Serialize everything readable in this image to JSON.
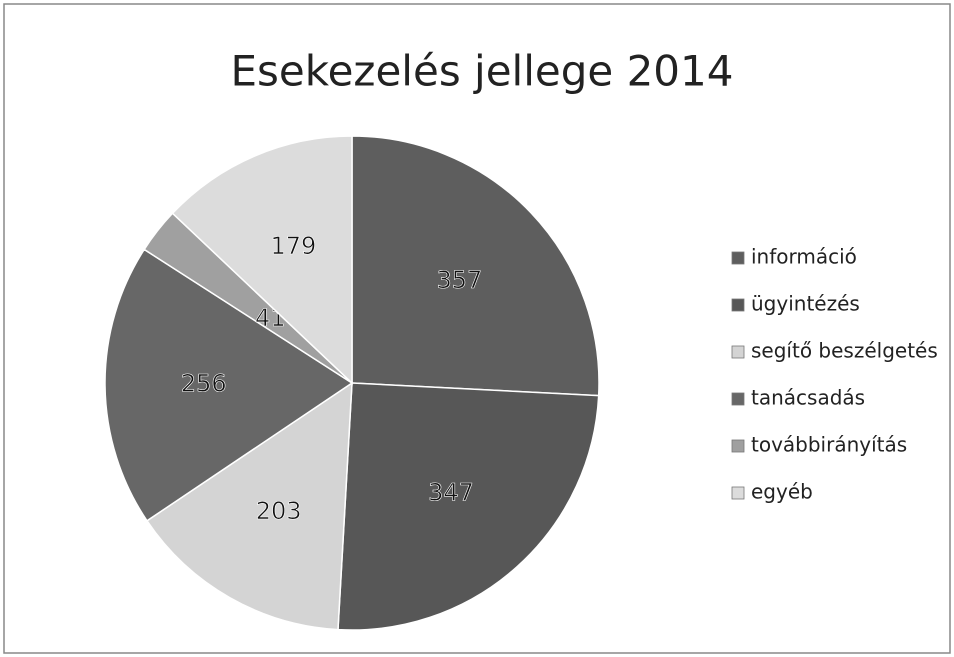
{
  "chart_data": {
    "type": "pie",
    "title": "Esekezelés jellege 2014",
    "categories": [
      "információ",
      "ügyintézés",
      "segítő beszélgetés",
      "tanácsadás",
      "továbbirányítás",
      "egyéb"
    ],
    "values": [
      357,
      347,
      203,
      256,
      41,
      179
    ],
    "colors": [
      "#5e5e5e",
      "#575757",
      "#d4d4d4",
      "#676767",
      "#a0a0a0",
      "#dcdcdc"
    ],
    "legend": "right"
  }
}
